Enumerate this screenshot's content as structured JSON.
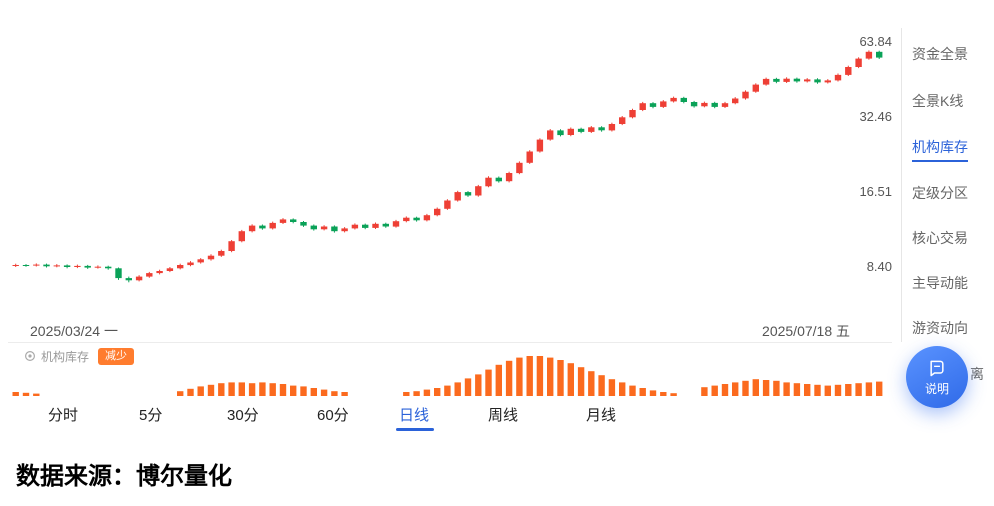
{
  "sidebar": {
    "items": [
      {
        "label": "资金全景",
        "active": false
      },
      {
        "label": "全景K线",
        "active": false
      },
      {
        "label": "机构库存",
        "active": true
      },
      {
        "label": "定级分区",
        "active": false
      },
      {
        "label": "核心交易",
        "active": false
      },
      {
        "label": "主导动能",
        "active": false
      },
      {
        "label": "游资动向",
        "active": false
      },
      {
        "label": "离",
        "active": false,
        "partially_hidden": true
      }
    ]
  },
  "tabs": {
    "items": [
      {
        "label": "分时",
        "active": false
      },
      {
        "label": "5分",
        "active": false
      },
      {
        "label": "30分",
        "active": false
      },
      {
        "label": "60分",
        "active": false
      },
      {
        "label": "日线",
        "active": true
      },
      {
        "label": "周线",
        "active": false
      },
      {
        "label": "月线",
        "active": false
      }
    ]
  },
  "indicator": {
    "icon": "gear-icon",
    "label": "机构库存",
    "badge": "减少"
  },
  "help_button": {
    "label": "说明"
  },
  "footer": {
    "source_text": "数据来源：博尔量化"
  },
  "colors": {
    "up": "#ee3f35",
    "down": "#0aa258",
    "accent_blue": "#2b62d9",
    "orange_bar": "#fb6a1e",
    "badge_orange": "#ff7c2e",
    "axis_text": "#555555"
  },
  "chart_data": [
    {
      "type": "candlestick",
      "title": "Daily K-line 2025/03/24 - 2025/07/18",
      "x_start_label": "2025/03/24 一",
      "x_end_label": "2025/07/18 五",
      "y_scale": "log",
      "y_axis_ticks": [
        63.84,
        32.46,
        16.51,
        8.4
      ],
      "ylim": [
        7.0,
        66.0
      ],
      "up_color": "#ee3f35",
      "down_color": "#0aa258",
      "candles_format": [
        "open",
        "close",
        "low",
        "high"
      ],
      "candles": [
        [
          8.5,
          8.55,
          8.4,
          8.65
        ],
        [
          8.55,
          8.5,
          8.42,
          8.62
        ],
        [
          8.5,
          8.58,
          8.44,
          8.68
        ],
        [
          8.58,
          8.45,
          8.36,
          8.66
        ],
        [
          8.45,
          8.52,
          8.38,
          8.62
        ],
        [
          8.52,
          8.4,
          8.3,
          8.6
        ],
        [
          8.4,
          8.48,
          8.32,
          8.58
        ],
        [
          8.48,
          8.35,
          8.26,
          8.56
        ],
        [
          8.35,
          8.42,
          8.28,
          8.52
        ],
        [
          8.42,
          8.3,
          8.2,
          8.5
        ],
        [
          8.3,
          7.6,
          7.48,
          8.36
        ],
        [
          7.6,
          7.45,
          7.32,
          7.7
        ],
        [
          7.45,
          7.7,
          7.38,
          7.8
        ],
        [
          7.7,
          7.95,
          7.62,
          8.04
        ],
        [
          7.95,
          8.1,
          7.86,
          8.2
        ],
        [
          8.1,
          8.3,
          8.02,
          8.4
        ],
        [
          8.3,
          8.55,
          8.22,
          8.65
        ],
        [
          8.55,
          8.75,
          8.46,
          8.86
        ],
        [
          8.75,
          9.0,
          8.66,
          9.1
        ],
        [
          9.0,
          9.3,
          8.9,
          9.42
        ],
        [
          9.3,
          9.7,
          9.2,
          9.82
        ],
        [
          9.7,
          10.6,
          9.6,
          10.72
        ],
        [
          10.6,
          11.6,
          10.5,
          11.74
        ],
        [
          11.6,
          12.2,
          11.48,
          12.35
        ],
        [
          12.2,
          11.9,
          11.76,
          12.32
        ],
        [
          11.9,
          12.5,
          11.78,
          12.65
        ],
        [
          12.5,
          12.9,
          12.38,
          13.05
        ],
        [
          12.9,
          12.6,
          12.46,
          13.02
        ],
        [
          12.6,
          12.2,
          12.06,
          12.72
        ],
        [
          12.2,
          11.8,
          11.66,
          12.32
        ],
        [
          11.8,
          12.1,
          11.68,
          12.25
        ],
        [
          12.1,
          11.6,
          11.46,
          12.22
        ],
        [
          11.6,
          11.9,
          11.48,
          12.04
        ],
        [
          11.9,
          12.3,
          11.78,
          12.45
        ],
        [
          12.3,
          11.95,
          11.81,
          12.42
        ],
        [
          11.95,
          12.4,
          11.83,
          12.55
        ],
        [
          12.4,
          12.1,
          11.96,
          12.52
        ],
        [
          12.1,
          12.7,
          11.98,
          12.85
        ],
        [
          12.7,
          13.1,
          12.57,
          13.26
        ],
        [
          13.1,
          12.8,
          12.65,
          13.22
        ],
        [
          12.8,
          13.4,
          12.67,
          13.56
        ],
        [
          13.4,
          14.2,
          13.27,
          14.37
        ],
        [
          14.2,
          15.3,
          14.06,
          15.48
        ],
        [
          15.3,
          16.5,
          15.15,
          16.7
        ],
        [
          16.5,
          16.0,
          15.81,
          16.66
        ],
        [
          16.0,
          17.4,
          15.84,
          17.61
        ],
        [
          17.4,
          18.8,
          17.23,
          19.03
        ],
        [
          18.8,
          18.2,
          17.98,
          18.99
        ],
        [
          18.2,
          19.6,
          18.02,
          19.84
        ],
        [
          19.6,
          21.5,
          19.4,
          21.76
        ],
        [
          21.5,
          23.8,
          21.28,
          24.09
        ],
        [
          23.8,
          26.5,
          23.56,
          26.82
        ],
        [
          26.5,
          28.8,
          26.24,
          29.15
        ],
        [
          28.8,
          27.6,
          27.27,
          29.09
        ],
        [
          27.6,
          29.2,
          27.32,
          29.55
        ],
        [
          29.2,
          28.4,
          28.06,
          29.49
        ],
        [
          28.4,
          29.6,
          28.12,
          29.96
        ],
        [
          29.6,
          28.8,
          28.45,
          29.9
        ],
        [
          28.8,
          30.5,
          28.51,
          30.87
        ],
        [
          30.5,
          32.4,
          30.19,
          32.79
        ],
        [
          32.4,
          34.6,
          32.08,
          35.02
        ],
        [
          34.6,
          36.8,
          34.25,
          37.24
        ],
        [
          36.8,
          35.6,
          35.17,
          37.17
        ],
        [
          35.6,
          37.4,
          35.24,
          37.85
        ],
        [
          37.4,
          38.6,
          37.03,
          39.06
        ],
        [
          38.6,
          37.2,
          36.75,
          38.99
        ],
        [
          37.2,
          35.8,
          35.37,
          37.57
        ],
        [
          35.8,
          36.9,
          35.44,
          37.34
        ],
        [
          36.9,
          35.6,
          35.17,
          37.27
        ],
        [
          35.6,
          36.8,
          35.24,
          37.24
        ],
        [
          36.8,
          38.4,
          36.43,
          38.86
        ],
        [
          38.4,
          40.8,
          38.02,
          41.29
        ],
        [
          40.8,
          43.5,
          40.39,
          44.02
        ],
        [
          43.5,
          45.8,
          43.07,
          46.35
        ],
        [
          45.8,
          44.6,
          44.06,
          46.26
        ],
        [
          44.6,
          45.9,
          44.15,
          46.45
        ],
        [
          45.9,
          44.8,
          44.26,
          46.36
        ],
        [
          44.8,
          45.6,
          44.35,
          46.15
        ],
        [
          45.6,
          44.4,
          43.87,
          46.06
        ],
        [
          44.4,
          45.2,
          43.96,
          45.74
        ],
        [
          45.2,
          47.5,
          44.75,
          48.07
        ],
        [
          47.5,
          51.0,
          47.03,
          51.61
        ],
        [
          51.0,
          55.0,
          50.49,
          55.66
        ],
        [
          55.0,
          58.5,
          54.45,
          59.2
        ],
        [
          58.5,
          55.5,
          54.83,
          59.09
        ]
      ]
    },
    {
      "type": "bar",
      "name": "机构库存",
      "state_label": "减少",
      "color": "#fb6a1e",
      "values_note": "relative heights 0-100, aligned to daily candles",
      "values": [
        10,
        8,
        6,
        0,
        0,
        0,
        0,
        0,
        0,
        0,
        0,
        0,
        0,
        0,
        0,
        0,
        12,
        18,
        24,
        28,
        32,
        34,
        34,
        32,
        34,
        32,
        30,
        26,
        24,
        20,
        16,
        12,
        10,
        0,
        0,
        0,
        0,
        0,
        10,
        12,
        16,
        20,
        26,
        34,
        44,
        54,
        66,
        78,
        88,
        96,
        100,
        100,
        96,
        90,
        82,
        72,
        62,
        52,
        42,
        34,
        26,
        20,
        14,
        10,
        7,
        0,
        0,
        22,
        26,
        30,
        34,
        38,
        42,
        40,
        38,
        34,
        32,
        30,
        28,
        26,
        28,
        30,
        32,
        34,
        36
      ]
    }
  ]
}
